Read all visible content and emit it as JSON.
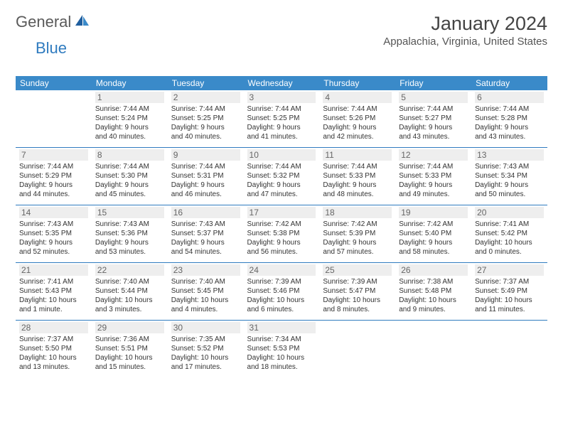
{
  "logo": {
    "text1": "General",
    "text2": "Blue"
  },
  "title": "January 2024",
  "location": "Appalachia, Virginia, United States",
  "colors": {
    "header_bg": "#3a8ac9",
    "header_text": "#ffffff",
    "divider": "#2f7bbf",
    "day_num_bg": "#eeeeee",
    "day_num_text": "#666666",
    "body_text": "#333333",
    "logo_gray": "#5a5a5a",
    "logo_blue": "#2f7bbf"
  },
  "dow": [
    "Sunday",
    "Monday",
    "Tuesday",
    "Wednesday",
    "Thursday",
    "Friday",
    "Saturday"
  ],
  "weeks": [
    [
      null,
      {
        "n": "1",
        "sr": "Sunrise: 7:44 AM",
        "ss": "Sunset: 5:24 PM",
        "d1": "Daylight: 9 hours",
        "d2": "and 40 minutes."
      },
      {
        "n": "2",
        "sr": "Sunrise: 7:44 AM",
        "ss": "Sunset: 5:25 PM",
        "d1": "Daylight: 9 hours",
        "d2": "and 40 minutes."
      },
      {
        "n": "3",
        "sr": "Sunrise: 7:44 AM",
        "ss": "Sunset: 5:25 PM",
        "d1": "Daylight: 9 hours",
        "d2": "and 41 minutes."
      },
      {
        "n": "4",
        "sr": "Sunrise: 7:44 AM",
        "ss": "Sunset: 5:26 PM",
        "d1": "Daylight: 9 hours",
        "d2": "and 42 minutes."
      },
      {
        "n": "5",
        "sr": "Sunrise: 7:44 AM",
        "ss": "Sunset: 5:27 PM",
        "d1": "Daylight: 9 hours",
        "d2": "and 43 minutes."
      },
      {
        "n": "6",
        "sr": "Sunrise: 7:44 AM",
        "ss": "Sunset: 5:28 PM",
        "d1": "Daylight: 9 hours",
        "d2": "and 43 minutes."
      }
    ],
    [
      {
        "n": "7",
        "sr": "Sunrise: 7:44 AM",
        "ss": "Sunset: 5:29 PM",
        "d1": "Daylight: 9 hours",
        "d2": "and 44 minutes."
      },
      {
        "n": "8",
        "sr": "Sunrise: 7:44 AM",
        "ss": "Sunset: 5:30 PM",
        "d1": "Daylight: 9 hours",
        "d2": "and 45 minutes."
      },
      {
        "n": "9",
        "sr": "Sunrise: 7:44 AM",
        "ss": "Sunset: 5:31 PM",
        "d1": "Daylight: 9 hours",
        "d2": "and 46 minutes."
      },
      {
        "n": "10",
        "sr": "Sunrise: 7:44 AM",
        "ss": "Sunset: 5:32 PM",
        "d1": "Daylight: 9 hours",
        "d2": "and 47 minutes."
      },
      {
        "n": "11",
        "sr": "Sunrise: 7:44 AM",
        "ss": "Sunset: 5:33 PM",
        "d1": "Daylight: 9 hours",
        "d2": "and 48 minutes."
      },
      {
        "n": "12",
        "sr": "Sunrise: 7:44 AM",
        "ss": "Sunset: 5:33 PM",
        "d1": "Daylight: 9 hours",
        "d2": "and 49 minutes."
      },
      {
        "n": "13",
        "sr": "Sunrise: 7:43 AM",
        "ss": "Sunset: 5:34 PM",
        "d1": "Daylight: 9 hours",
        "d2": "and 50 minutes."
      }
    ],
    [
      {
        "n": "14",
        "sr": "Sunrise: 7:43 AM",
        "ss": "Sunset: 5:35 PM",
        "d1": "Daylight: 9 hours",
        "d2": "and 52 minutes."
      },
      {
        "n": "15",
        "sr": "Sunrise: 7:43 AM",
        "ss": "Sunset: 5:36 PM",
        "d1": "Daylight: 9 hours",
        "d2": "and 53 minutes."
      },
      {
        "n": "16",
        "sr": "Sunrise: 7:43 AM",
        "ss": "Sunset: 5:37 PM",
        "d1": "Daylight: 9 hours",
        "d2": "and 54 minutes."
      },
      {
        "n": "17",
        "sr": "Sunrise: 7:42 AM",
        "ss": "Sunset: 5:38 PM",
        "d1": "Daylight: 9 hours",
        "d2": "and 56 minutes."
      },
      {
        "n": "18",
        "sr": "Sunrise: 7:42 AM",
        "ss": "Sunset: 5:39 PM",
        "d1": "Daylight: 9 hours",
        "d2": "and 57 minutes."
      },
      {
        "n": "19",
        "sr": "Sunrise: 7:42 AM",
        "ss": "Sunset: 5:40 PM",
        "d1": "Daylight: 9 hours",
        "d2": "and 58 minutes."
      },
      {
        "n": "20",
        "sr": "Sunrise: 7:41 AM",
        "ss": "Sunset: 5:42 PM",
        "d1": "Daylight: 10 hours",
        "d2": "and 0 minutes."
      }
    ],
    [
      {
        "n": "21",
        "sr": "Sunrise: 7:41 AM",
        "ss": "Sunset: 5:43 PM",
        "d1": "Daylight: 10 hours",
        "d2": "and 1 minute."
      },
      {
        "n": "22",
        "sr": "Sunrise: 7:40 AM",
        "ss": "Sunset: 5:44 PM",
        "d1": "Daylight: 10 hours",
        "d2": "and 3 minutes."
      },
      {
        "n": "23",
        "sr": "Sunrise: 7:40 AM",
        "ss": "Sunset: 5:45 PM",
        "d1": "Daylight: 10 hours",
        "d2": "and 4 minutes."
      },
      {
        "n": "24",
        "sr": "Sunrise: 7:39 AM",
        "ss": "Sunset: 5:46 PM",
        "d1": "Daylight: 10 hours",
        "d2": "and 6 minutes."
      },
      {
        "n": "25",
        "sr": "Sunrise: 7:39 AM",
        "ss": "Sunset: 5:47 PM",
        "d1": "Daylight: 10 hours",
        "d2": "and 8 minutes."
      },
      {
        "n": "26",
        "sr": "Sunrise: 7:38 AM",
        "ss": "Sunset: 5:48 PM",
        "d1": "Daylight: 10 hours",
        "d2": "and 9 minutes."
      },
      {
        "n": "27",
        "sr": "Sunrise: 7:37 AM",
        "ss": "Sunset: 5:49 PM",
        "d1": "Daylight: 10 hours",
        "d2": "and 11 minutes."
      }
    ],
    [
      {
        "n": "28",
        "sr": "Sunrise: 7:37 AM",
        "ss": "Sunset: 5:50 PM",
        "d1": "Daylight: 10 hours",
        "d2": "and 13 minutes."
      },
      {
        "n": "29",
        "sr": "Sunrise: 7:36 AM",
        "ss": "Sunset: 5:51 PM",
        "d1": "Daylight: 10 hours",
        "d2": "and 15 minutes."
      },
      {
        "n": "30",
        "sr": "Sunrise: 7:35 AM",
        "ss": "Sunset: 5:52 PM",
        "d1": "Daylight: 10 hours",
        "d2": "and 17 minutes."
      },
      {
        "n": "31",
        "sr": "Sunrise: 7:34 AM",
        "ss": "Sunset: 5:53 PM",
        "d1": "Daylight: 10 hours",
        "d2": "and 18 minutes."
      },
      null,
      null,
      null
    ]
  ]
}
